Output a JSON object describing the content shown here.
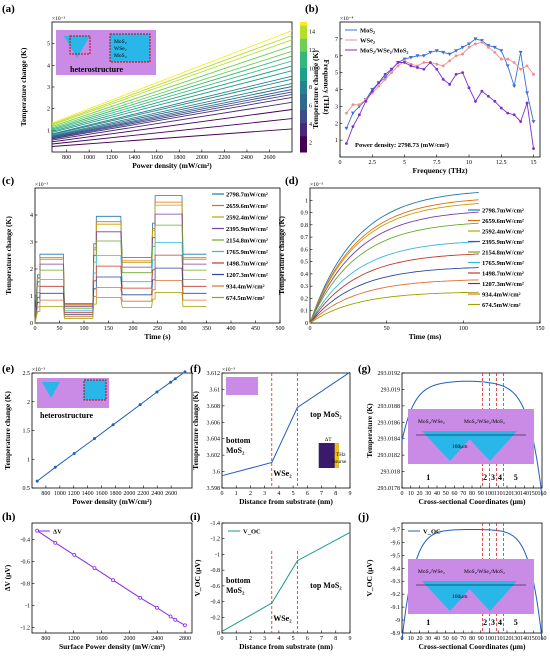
{
  "chart_data": [
    {
      "id": "a",
      "panel": "(a)",
      "type": "line",
      "xlabel": "Power density (mW/cm²)",
      "ylabel": "Temperature change (K)",
      "yexp": "×10⁻³",
      "xlim": [
        670,
        2800
      ],
      "ylim": [
        0,
        6
      ],
      "xticks": [
        800,
        1000,
        1200,
        1400,
        1600,
        1800,
        2000,
        2200,
        2400,
        2600
      ],
      "yticks": [
        1,
        2,
        3,
        4,
        5
      ],
      "colorbar": {
        "label": "Frequency (THz)",
        "ticks": [
          2,
          4,
          6,
          8,
          10,
          12,
          14
        ]
      },
      "annotation": "heterostructure",
      "inset_text": [
        "MoS₂",
        "WSe₂",
        "MoS₂"
      ],
      "series_slopes": [
        0.00038,
        0.00055,
        0.0007,
        0.00082,
        0.0009,
        0.00095,
        0.00099,
        0.00103,
        0.00108,
        0.00113,
        0.0012,
        0.00125,
        0.00134,
        0.00142,
        0.0015,
        0.00158,
        0.00166,
        0.00175,
        0.00185,
        0.00192,
        0.002
      ],
      "series_intercept_frac": 0.38
    },
    {
      "id": "b",
      "panel": "(b)",
      "type": "line",
      "xlabel": "Frequency (THz)",
      "ylabel": "Temperature change (K)",
      "yexp": "×10⁻⁴",
      "xlim": [
        0,
        15.5
      ],
      "ylim": [
        0,
        8
      ],
      "xticks": [
        0,
        2.5,
        5,
        7.5,
        10,
        12.5,
        15
      ],
      "yticks": [
        1,
        2,
        3,
        4,
        5,
        6,
        7
      ],
      "annotation": "Power density: 2798.73 (mW/cm²)",
      "series": [
        {
          "name": "MoS₂",
          "color": "#3b6fd6",
          "marker": "triangle-down",
          "x": [
            0.5,
            1,
            1.5,
            2,
            2.5,
            3,
            3.5,
            4,
            4.5,
            5,
            5.5,
            6,
            6.5,
            7,
            7.5,
            8,
            8.5,
            9,
            9.5,
            10,
            10.5,
            11,
            11.5,
            12,
            12.5,
            13,
            13.5,
            14,
            14.5,
            15
          ],
          "y": [
            1.7,
            2.6,
            3.0,
            3.4,
            4.0,
            4.4,
            4.7,
            5.2,
            5.6,
            5.8,
            5.9,
            6.0,
            6.0,
            6.2,
            6.3,
            6.2,
            6.1,
            6.3,
            6.5,
            6.7,
            7.0,
            6.9,
            6.6,
            6.5,
            6.3,
            5.4,
            4.2,
            6.2,
            3.8,
            2.1
          ]
        },
        {
          "name": "WSe₂",
          "color": "#f08d8d",
          "marker": "circle",
          "x": [
            0.5,
            1,
            1.5,
            2,
            2.5,
            3,
            3.5,
            4,
            4.5,
            5,
            5.5,
            6,
            6.5,
            7,
            7.5,
            8,
            8.5,
            9,
            9.5,
            10,
            10.5,
            11,
            11.5,
            12,
            12.5,
            13,
            13.5,
            14,
            14.5,
            15
          ],
          "y": [
            2.6,
            3.1,
            3.1,
            3.4,
            3.8,
            4.2,
            4.6,
            5.0,
            5.4,
            5.7,
            5.5,
            5.4,
            5.6,
            5.6,
            5.5,
            5.4,
            5.7,
            6.0,
            6.1,
            6.5,
            6.7,
            6.8,
            6.5,
            6.2,
            5.8,
            5.8,
            5.6,
            5.2,
            5.4,
            4.9
          ]
        },
        {
          "name": "MoS₂/WSe₂/MoS₂",
          "color": "#7a2fd0",
          "marker": "circle",
          "x": [
            0.5,
            1,
            1.5,
            2,
            2.5,
            3,
            3.5,
            4,
            4.5,
            5,
            5.5,
            6,
            6.5,
            7,
            7.5,
            8,
            8.5,
            9,
            9.5,
            10,
            10.5,
            11,
            11.5,
            12,
            12.5,
            13,
            13.5,
            14,
            14.5,
            15
          ],
          "y": [
            0.8,
            1.8,
            2.5,
            3.3,
            3.9,
            4.4,
            4.9,
            5.2,
            5.6,
            5.6,
            5.4,
            5.3,
            5.2,
            5.6,
            5.2,
            4.6,
            4.3,
            4.9,
            5.0,
            4.1,
            3.3,
            3.9,
            3.6,
            3.3,
            2.9,
            2.6,
            2.5,
            2.1,
            3.2,
            0.5
          ]
        }
      ]
    },
    {
      "id": "c",
      "panel": "(c)",
      "type": "line",
      "xlabel": "Time (s)",
      "ylabel": "Temperature change (K)",
      "yexp": "×10⁻³",
      "xlim": [
        0,
        500
      ],
      "ylim": [
        0,
        5
      ],
      "xticks": [
        0,
        50,
        100,
        150,
        200,
        250,
        300,
        350,
        400,
        450,
        500
      ],
      "yticks": [
        0,
        1,
        2,
        3,
        4
      ],
      "legend": [
        "2798.7mW/cm²",
        "2659.6mW/cm²",
        "2592.4mW/cm²",
        "2395.9mW/cm²",
        "2154.8mW/cm²",
        "1765.9mW/cm²",
        "1498.7mW/cm²",
        "1207.3mW/cm²",
        "934.4mW/cm²",
        "674.5mW/cm²"
      ],
      "colors": [
        "#1f77b4",
        "#e36c0a",
        "#c0a000",
        "#7b3fa0",
        "#6aaa2a",
        "#33b8e0",
        "#c0392b",
        "#2a4a9a",
        "#e07030",
        "#a0a000"
      ],
      "levels": [
        2.55,
        2.42,
        2.36,
        2.18,
        1.96,
        1.61,
        1.36,
        1.1,
        0.85,
        0.61
      ]
    },
    {
      "id": "d",
      "panel": "(d)",
      "type": "line",
      "xlabel": "Time (ms)",
      "ylabel": "Temperature change (K)",
      "yexp": "×10⁻⁵",
      "xlim": [
        0,
        150
      ],
      "ylim": [
        0,
        1.1
      ],
      "xticks": [
        0,
        50,
        100,
        150
      ],
      "yticks": [
        0,
        0.1,
        0.2,
        0.3,
        0.4,
        0.5,
        0.6,
        0.7,
        0.8,
        0.9,
        1.0
      ],
      "legend": [
        "2798.7mW/cm²",
        "2659.6mW/cm²",
        "2592.4mW/cm²",
        "2395.9mW/cm²",
        "2154.8mW/cm²",
        "1765.9mW/cm²",
        "1498.7mW/cm²",
        "1207.3mW/cm²",
        "934.4mW/cm²",
        "674.5mW/cm²"
      ],
      "final": [
        1.06,
        1.0,
        0.97,
        0.9,
        0.81,
        0.66,
        0.56,
        0.45,
        0.35,
        0.25
      ]
    },
    {
      "id": "e",
      "panel": "(e)",
      "type": "line",
      "xlabel": "Power density (mW/cm²)",
      "ylabel": "Temperature change (K)",
      "yexp": "×10⁻³",
      "xlim": [
        600,
        2900
      ],
      "ylim": [
        0.5,
        2.5
      ],
      "xticks": [
        800,
        1000,
        1200,
        1400,
        1600,
        1800,
        2000,
        2200,
        2400,
        2600
      ],
      "yticks": [
        0.5,
        1.0,
        1.5,
        2.0,
        2.5
      ],
      "annotation": "heterostructure",
      "x": [
        674.5,
        934.4,
        1207.3,
        1498.7,
        1765.9,
        2154.8,
        2395.9,
        2592.4,
        2659.6,
        2798.7
      ],
      "y": [
        0.62,
        0.86,
        1.1,
        1.36,
        1.6,
        1.95,
        2.17,
        2.34,
        2.4,
        2.52
      ]
    },
    {
      "id": "f",
      "panel": "(f)",
      "type": "line",
      "xlabel": "Distance from substrate (nm)",
      "ylabel": "Temperature change (K)",
      "yexp": "×10⁻³",
      "xlim": [
        0,
        9
      ],
      "ylim": [
        3.598,
        3.612
      ],
      "xticks": [
        0,
        1,
        2,
        3,
        4,
        5,
        6,
        7,
        8,
        9
      ],
      "yticks": [
        3.598,
        3.6,
        3.602,
        3.604,
        3.606,
        3.608,
        3.61,
        3.612
      ],
      "x": [
        0,
        3.5,
        5.3,
        9
      ],
      "y": [
        3.5995,
        3.6011,
        3.6078,
        3.6121
      ],
      "labels": [
        "bottom",
        "MoS₂",
        "WSe₂",
        "top MoS₂"
      ],
      "inset_text": [
        "ΔT",
        "THz",
        "Sourse"
      ]
    },
    {
      "id": "g",
      "panel": "(g)",
      "type": "line",
      "xlabel": "Cross-sectional Coordinates (μm)",
      "ylabel": "Temperature (K)",
      "xlim": [
        0,
        160
      ],
      "ylim": [
        293.0178,
        293.0192
      ],
      "xticks": [
        0,
        10,
        20,
        30,
        40,
        50,
        60,
        70,
        80,
        90,
        100,
        110,
        120,
        130,
        140,
        150,
        160
      ],
      "yticks": [
        293.0178,
        293.018,
        293.0182,
        293.0184,
        293.0186,
        293.0188,
        293.019,
        293.0192
      ],
      "region_numbers": [
        "1",
        "2",
        "3",
        "4",
        "5"
      ],
      "inset_text": [
        "MoS₂/WSe₂",
        "MoS₂/WSe₂/MoS₂",
        "160μm"
      ]
    },
    {
      "id": "h",
      "panel": "(h)",
      "type": "line",
      "xlabel": "Surface Power density (mW/cm²)",
      "ylabel": "ΔV (μV)",
      "legend": [
        "ΔV"
      ],
      "xlim": [
        600,
        2900
      ],
      "ylim": [
        -1.25,
        -0.25
      ],
      "xticks": [
        800,
        1200,
        1600,
        2000,
        2400,
        2800
      ],
      "yticks": [
        -0.4,
        -0.6,
        -0.8,
        -1.0,
        -1.2
      ],
      "x": [
        674.5,
        934.4,
        1207.3,
        1498.7,
        1765.9,
        2154.8,
        2395.9,
        2592.4,
        2659.6,
        2798.7
      ],
      "y": [
        -0.32,
        -0.43,
        -0.54,
        -0.66,
        -0.77,
        -0.93,
        -1.02,
        -1.1,
        -1.13,
        -1.18
      ]
    },
    {
      "id": "i",
      "panel": "(i)",
      "type": "line",
      "xlabel": "Distance from substrate (nm)",
      "ylabel": "V_OC (μV)",
      "legend": [
        "V_OC"
      ],
      "xlim": [
        0,
        9
      ],
      "ylim": [
        0,
        -1.4
      ],
      "xticks": [
        0,
        1,
        2,
        3,
        4,
        5,
        6,
        7,
        8,
        9
      ],
      "yticks": [
        0.0,
        -0.2,
        -0.4,
        -0.6,
        -0.8,
        -1.0,
        -1.2,
        -1.4
      ],
      "x": [
        0,
        3.5,
        5.3,
        9
      ],
      "y": [
        -0.02,
        -0.38,
        -0.92,
        -1.28
      ],
      "labels": [
        "bottom",
        "MoS₂",
        "WSe₂",
        "top MoS₂"
      ]
    },
    {
      "id": "j",
      "panel": "(j)",
      "type": "line",
      "xlabel": "Cross-sectional Coordinates (μm)",
      "ylabel": "V_OC (μV)",
      "legend": [
        "V_OC"
      ],
      "xlim": [
        0,
        160
      ],
      "ylim": [
        -8.9,
        -9.75
      ],
      "xticks": [
        0,
        10,
        20,
        30,
        40,
        50,
        60,
        70,
        80,
        90,
        100,
        110,
        120,
        130,
        140,
        150,
        160
      ],
      "yticks": [
        -9.7,
        -9.6,
        -9.5,
        -9.4,
        -9.3,
        -9.2,
        -9.1,
        -9.0,
        -8.9
      ],
      "region_numbers": [
        "1",
        "2",
        "3",
        "4",
        "5"
      ],
      "inset_text": [
        "MoS₂/WSe₂",
        "MoS₂/WSe₂/MoS₂",
        "160μm"
      ]
    }
  ]
}
